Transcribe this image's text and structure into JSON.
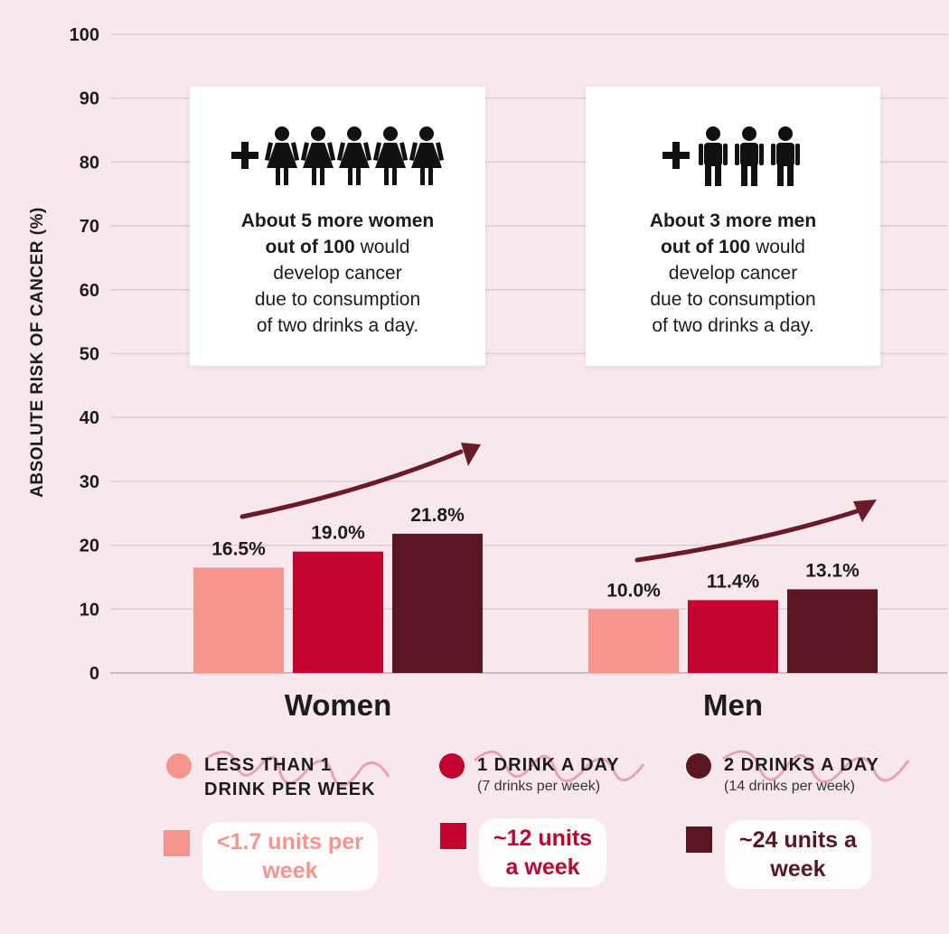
{
  "chart_data": {
    "type": "bar",
    "ylabel": "ABSOLUTE RISK OF CANCER (%)",
    "ylim": [
      0,
      100
    ],
    "yticks": [
      0,
      10,
      20,
      30,
      40,
      50,
      60,
      70,
      80,
      90,
      100
    ],
    "grid": true,
    "categories": [
      "Women",
      "Men"
    ],
    "series": [
      {
        "name": "LESS THAN 1 DRINK PER WEEK",
        "color": "#f6958e",
        "values": [
          16.5,
          10.0
        ],
        "labels": [
          "16.5%",
          "10.0%"
        ]
      },
      {
        "name": "1 DRINK A DAY",
        "color": "#c4042f",
        "values": [
          19.0,
          11.4
        ],
        "labels": [
          "19.0%",
          "11.4%"
        ]
      },
      {
        "name": "2 DRINKS A DAY",
        "color": "#5a1722",
        "values": [
          21.8,
          13.1
        ],
        "labels": [
          "21.8%",
          "13.1%"
        ]
      }
    ]
  },
  "callouts": [
    {
      "icon": "plus-five-women-icon",
      "bold1": "About 5 more women",
      "bold2": "out of 100",
      "rest2": " would",
      "line3": "develop cancer",
      "line4": "due to consumption",
      "line5": "of two drinks a day."
    },
    {
      "icon": "plus-three-men-icon",
      "bold1": "About 3 more men",
      "bold2": "out of 100",
      "rest2": " would",
      "line3": "develop cancer",
      "line4": "due to consumption",
      "line5": "of two drinks a day."
    }
  ],
  "legend": {
    "item1": {
      "line1": "LESS THAN 1",
      "line2": "DRINK PER WEEK",
      "color": "#f6958e"
    },
    "item2": {
      "line1": "1 DRINK A DAY",
      "sub": "(7 drinks per week)",
      "color": "#c4042f"
    },
    "item3": {
      "line1": "2 DRINKS A DAY",
      "sub": "(14 drinks per week)",
      "color": "#5a1722"
    }
  },
  "units": {
    "item1": {
      "line1": "<1.7 units per",
      "line2": "week",
      "color": "#f6958e"
    },
    "item2": {
      "line1": "~12 units",
      "line2": "a week",
      "color": "#c4042f"
    },
    "item3": {
      "line1": "~24 units a",
      "line2": "week",
      "color": "#5a1722"
    }
  },
  "annotation_color": "#e07b92"
}
